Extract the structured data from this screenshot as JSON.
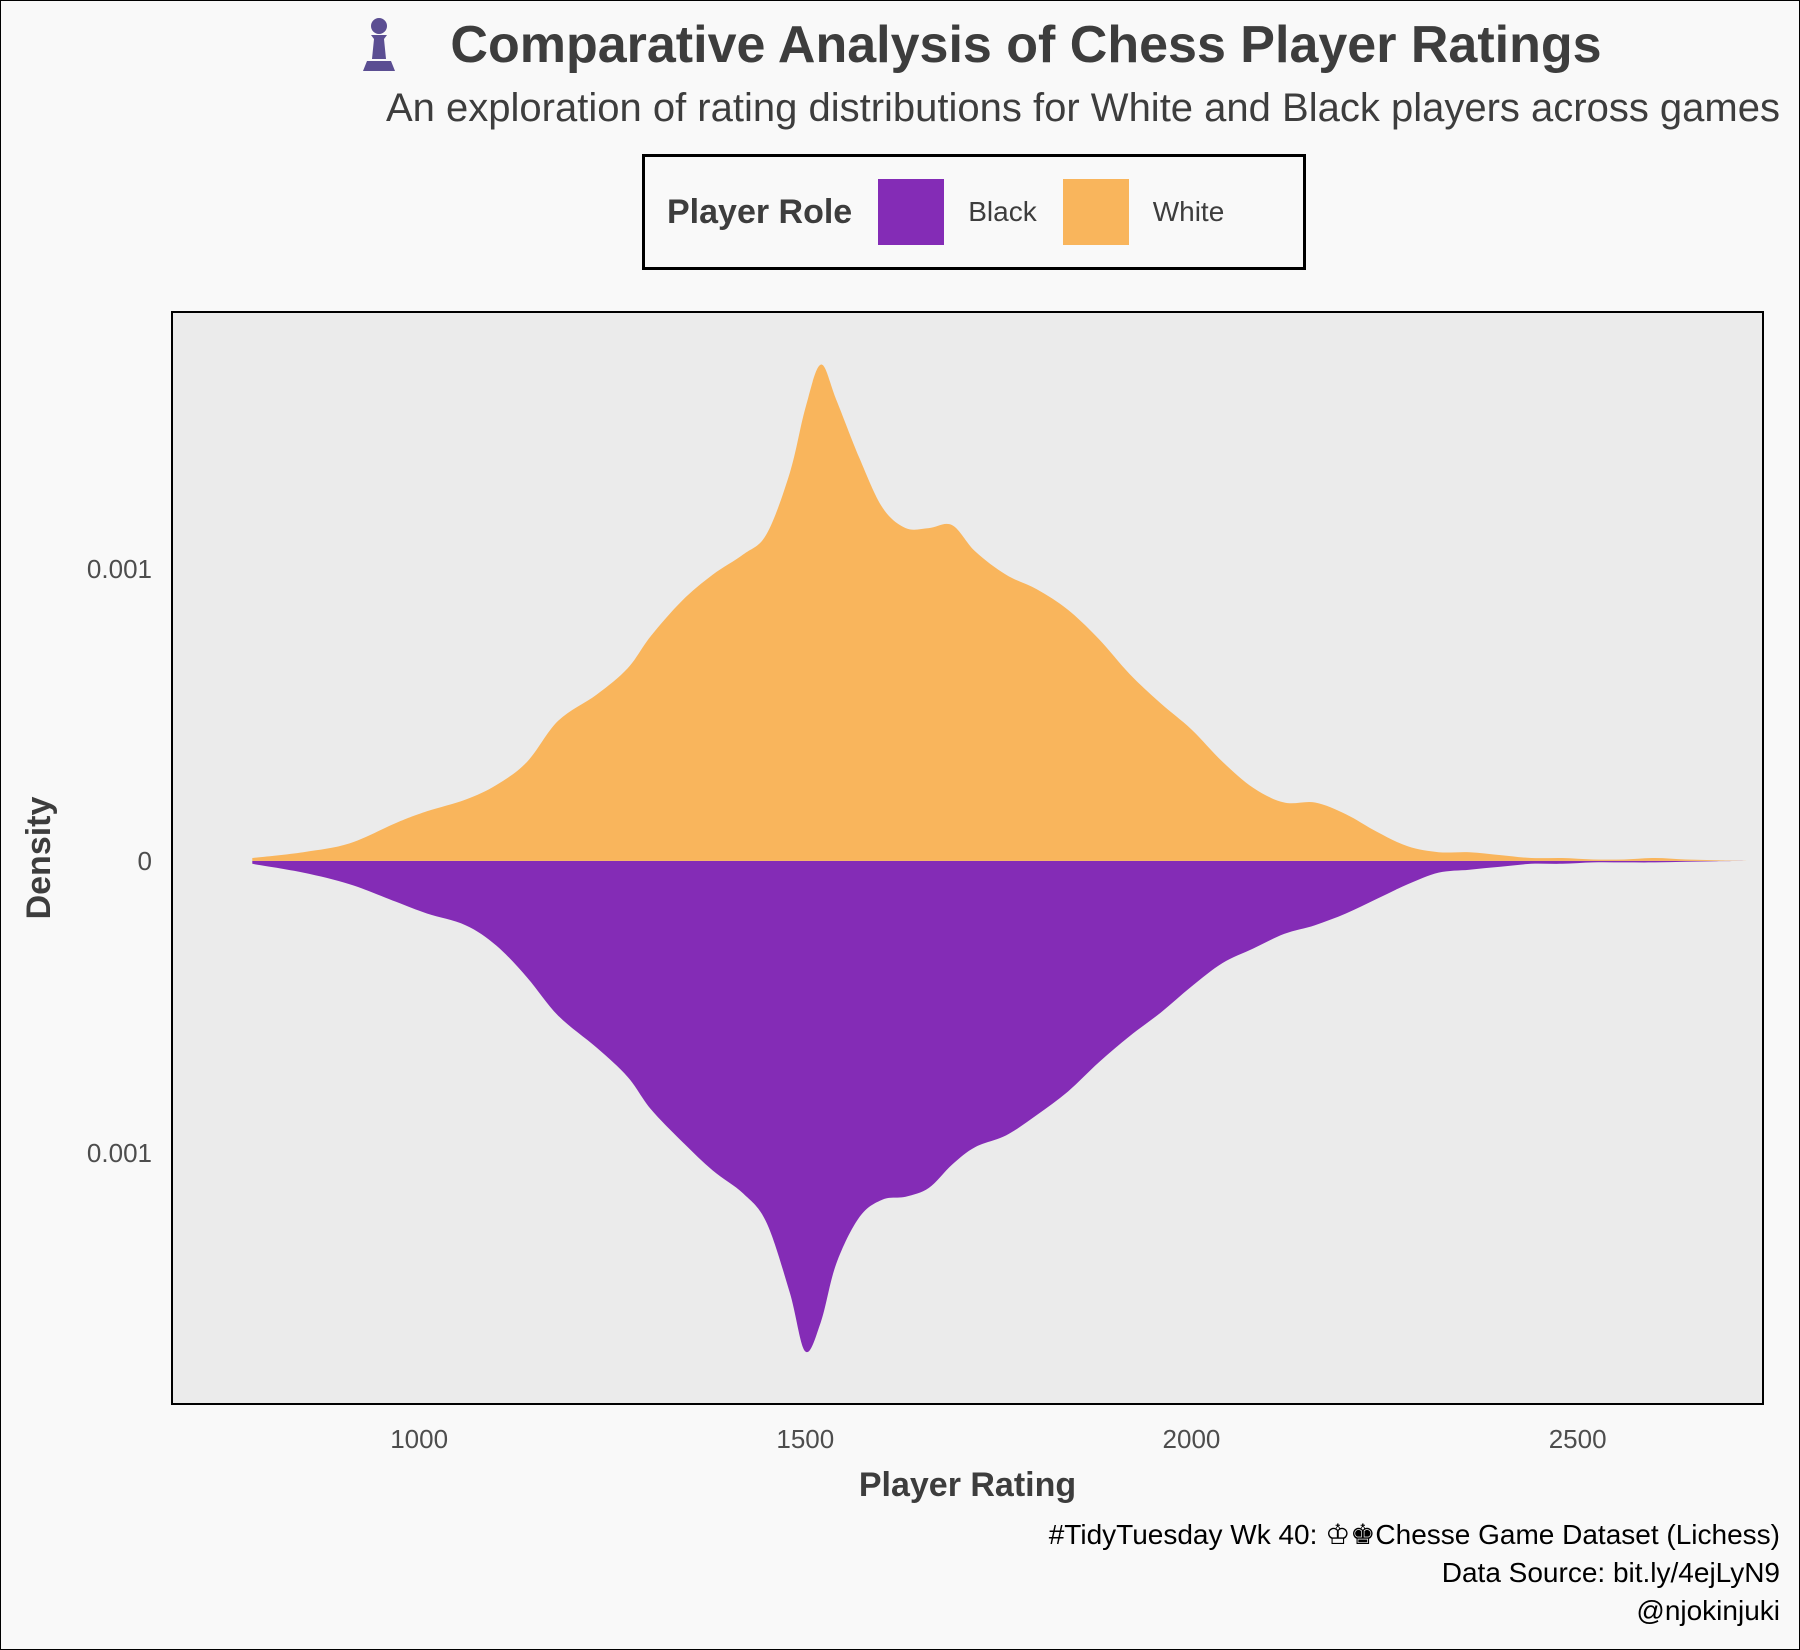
{
  "title": "Comparative Analysis of Chess Player Ratings",
  "subtitle": "An exploration of rating distributions for White and Black players across games",
  "icon": "chess-pawn-icon",
  "colors": {
    "white": "#F9B55C",
    "black": "#842CB6",
    "panel": "#EBEBEB",
    "pawn": "#5B4E92"
  },
  "legend": {
    "title": "Player Role",
    "items": [
      {
        "label": "Black",
        "color": "#842CB6"
      },
      {
        "label": "White",
        "color": "#F9B55C"
      }
    ]
  },
  "caption": {
    "line1": "#TidyTuesday Wk 40: ♔♚Chesse Game Dataset (Lichess)",
    "line2": "Data Source: bit.ly/4ejLyN9",
    "line3": "@njokinjuki"
  },
  "chart_data": {
    "type": "area",
    "title": "Comparative Analysis of Chess Player Ratings",
    "xlabel": "Player Rating",
    "ylabel": "Density",
    "xlim": [
      680,
      2740
    ],
    "ylim": [
      -0.00186,
      0.00188
    ],
    "x_ticks": [
      1000,
      1500,
      2000,
      2500
    ],
    "x_tick_labels": [
      "1000",
      "1500",
      "2000",
      "2500"
    ],
    "y_ticks": [
      0.001,
      0,
      -0.001
    ],
    "y_tick_labels": [
      "0.001",
      "0",
      "0.001"
    ],
    "grid": false,
    "legend_position": "top",
    "series": [
      {
        "name": "White",
        "direction": "up",
        "x": [
          784,
          850,
          910,
          970,
          1010,
          1060,
          1100,
          1140,
          1180,
          1230,
          1270,
          1300,
          1340,
          1380,
          1420,
          1450,
          1480,
          1500,
          1520,
          1540,
          1570,
          1600,
          1630,
          1660,
          1690,
          1720,
          1760,
          1800,
          1840,
          1880,
          1920,
          1960,
          2000,
          2040,
          2080,
          2120,
          2160,
          2200,
          2240,
          2280,
          2320,
          2360,
          2400,
          2440,
          2480,
          2520,
          2560,
          2600,
          2640,
          2680,
          2720
        ],
        "y": [
          1e-05,
          3e-05,
          6e-05,
          0.00013,
          0.00017,
          0.00021,
          0.00026,
          0.00034,
          0.00048,
          0.00057,
          0.00066,
          0.00077,
          0.00089,
          0.00098,
          0.00105,
          0.00112,
          0.00133,
          0.00155,
          0.0017,
          0.00158,
          0.00138,
          0.00121,
          0.00114,
          0.00114,
          0.00115,
          0.00106,
          0.00098,
          0.00093,
          0.00086,
          0.00076,
          0.00064,
          0.00054,
          0.00045,
          0.00034,
          0.00025,
          0.0002,
          0.0002,
          0.00016,
          0.0001,
          5e-05,
          3e-05,
          3e-05,
          2e-05,
          1e-05,
          1e-05,
          5e-06,
          5e-06,
          1e-05,
          5e-06,
          2e-06,
          0.0
        ]
      },
      {
        "name": "Black",
        "direction": "down",
        "x": [
          784,
          850,
          910,
          970,
          1010,
          1060,
          1100,
          1140,
          1180,
          1230,
          1270,
          1300,
          1340,
          1380,
          1420,
          1450,
          1480,
          1500,
          1520,
          1540,
          1570,
          1600,
          1630,
          1660,
          1690,
          1720,
          1760,
          1800,
          1840,
          1880,
          1920,
          1960,
          2000,
          2040,
          2080,
          2120,
          2160,
          2200,
          2240,
          2280,
          2320,
          2360,
          2400,
          2440,
          2480,
          2520,
          2560,
          2600,
          2640,
          2680,
          2720
        ],
        "y": [
          1e-05,
          4e-05,
          8e-05,
          0.00014,
          0.00018,
          0.00022,
          0.00029,
          0.0004,
          0.00053,
          0.00064,
          0.00074,
          0.00085,
          0.00096,
          0.00106,
          0.00114,
          0.00124,
          0.00148,
          0.00168,
          0.00158,
          0.00138,
          0.00122,
          0.00116,
          0.00115,
          0.00112,
          0.00104,
          0.00098,
          0.00094,
          0.00087,
          0.00079,
          0.00069,
          0.0006,
          0.00052,
          0.00043,
          0.00035,
          0.0003,
          0.00025,
          0.00022,
          0.00018,
          0.00013,
          8e-05,
          4e-05,
          3e-05,
          2e-05,
          1e-05,
          1e-05,
          5e-06,
          5e-06,
          5e-06,
          3e-06,
          1e-06,
          0.0
        ]
      }
    ]
  }
}
